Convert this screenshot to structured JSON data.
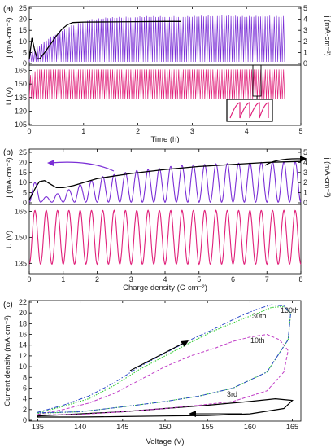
{
  "colors": {
    "purple": "#7b2fd6",
    "pink": "#e0207a",
    "black": "#000000",
    "green": "#33cc33",
    "magenta": "#c03cc6",
    "blue": "#2a48c8"
  },
  "chart_data": [
    {
      "panel": "(a)",
      "type": "line",
      "xlabel": "Time (h)",
      "xlim": [
        0,
        5
      ],
      "xticks": [
        "0",
        "1",
        "2",
        "3",
        "4",
        "5"
      ],
      "top": {
        "ylabel_left": "j (mA·cm⁻²)",
        "ylabel_right": "j (mA·cm⁻²)",
        "ylim_left": [
          0,
          25
        ],
        "yticks_left": [
          "0",
          "5",
          "10",
          "15",
          "20",
          "25"
        ],
        "ylim_right": [
          0,
          5
        ],
        "yticks_right": [
          "0",
          "1",
          "2",
          "3",
          "4",
          "5"
        ],
        "purple_series": {
          "x_range": [
            0,
            4.7
          ],
          "cycles": 112,
          "peak_values_right_axis": [
            1.0,
            2.3,
            3.3,
            3.9,
            4.1,
            4.15,
            4.2,
            4.2,
            4.2,
            4.25,
            4.3,
            4.2,
            4.25,
            4.2
          ]
        },
        "black_envelope": {
          "x": [
            0,
            0.05,
            0.1,
            0.15,
            0.2,
            0.3,
            0.4,
            0.5,
            0.6,
            0.7,
            0.8,
            1.0,
            1.5,
            2.0,
            2.5,
            2.8
          ],
          "y": [
            2,
            11.5,
            6,
            2,
            2.3,
            5.5,
            9,
            12.5,
            15.5,
            17.5,
            18.5,
            18.7,
            18.8,
            18.9,
            19,
            19
          ]
        }
      },
      "bottom": {
        "ylabel": "U (V)",
        "ylim": [
          105,
          170
        ],
        "yticks": [
          "105",
          "120",
          "135",
          "150",
          "165"
        ],
        "pink_series": {
          "x_range": [
            0,
            4.7
          ],
          "low": 133,
          "high": 166
        },
        "inset_x_range": [
          4.05,
          4.15
        ]
      }
    },
    {
      "panel": "(b)",
      "type": "line",
      "xlabel": "Charge density (C·cm⁻²)",
      "xlim": [
        0,
        8
      ],
      "xticks": [
        "0",
        "1",
        "2",
        "3",
        "4",
        "5",
        "6",
        "7",
        "8"
      ],
      "top": {
        "ylabel_left": "j (mA·cm⁻²)",
        "ylabel_right": "j (mA·cm⁻²)",
        "ylim_left": [
          0,
          25
        ],
        "yticks_left": [
          "0",
          "5",
          "10",
          "15",
          "20",
          "25"
        ],
        "ylim_right": [
          0,
          5
        ],
        "yticks_right": [
          "0",
          "1",
          "2",
          "3",
          "4",
          "5"
        ],
        "purple_peaks": [
          10,
          3,
          4.5,
          6.5,
          9,
          11,
          13,
          14,
          15,
          16,
          16.5,
          17,
          18,
          18.5,
          18.8,
          19,
          19.3,
          19.5,
          19.6,
          19.8,
          20,
          20.1,
          20.2,
          20.3
        ],
        "black_envelope": {
          "x": [
            0,
            0.2,
            0.3,
            0.45,
            0.6,
            0.8,
            1.0,
            1.3,
            2.0,
            3.0,
            4.0,
            5.0,
            6.0,
            7.0,
            8.0
          ],
          "y": [
            0.3,
            1.6,
            2.1,
            2.2,
            1.9,
            1.5,
            1.5,
            1.7,
            2.4,
            2.9,
            3.3,
            3.6,
            3.8,
            4.0,
            4.1
          ]
        }
      },
      "bottom": {
        "ylabel": "U (V)",
        "ylim": [
          130,
          168
        ],
        "yticks": [
          "135",
          "150",
          "165"
        ],
        "pink_series": {
          "cycles": 24,
          "low": 134.5,
          "high": 165.5
        }
      }
    },
    {
      "panel": "(c)",
      "type": "line",
      "xlabel": "Voltage (V)",
      "ylabel": "Current density (mA·cm⁻²)",
      "xlim": [
        134,
        166
      ],
      "xticks": [
        "135",
        "140",
        "145",
        "150",
        "155",
        "160",
        "165"
      ],
      "ylim": [
        0,
        22
      ],
      "yticks": [
        "0",
        "2",
        "4",
        "6",
        "8",
        "10",
        "12",
        "14",
        "16",
        "18",
        "20",
        "22"
      ],
      "series": [
        {
          "name": "3rd",
          "color": "black",
          "up": [
            [
              135,
              0.8
            ],
            [
              140,
              1.2
            ],
            [
              145,
              1.6
            ],
            [
              150,
              2.2
            ],
            [
              155,
              2.8
            ],
            [
              160,
              3.5
            ],
            [
              163,
              4
            ],
            [
              165,
              3.7
            ]
          ],
          "down": [
            [
              165,
              3.7
            ],
            [
              164,
              2.2
            ],
            [
              160,
              1.2
            ],
            [
              155,
              0.9
            ],
            [
              150,
              0.8
            ],
            [
              145,
              0.7
            ],
            [
              140,
              0.6
            ],
            [
              135,
              0.6
            ]
          ]
        },
        {
          "name": "10th",
          "color": "magenta",
          "up": [
            [
              135,
              1.1
            ],
            [
              138,
              2
            ],
            [
              141,
              3.2
            ],
            [
              144,
              5
            ],
            [
              147,
              7.5
            ],
            [
              150,
              10
            ],
            [
              153,
              12
            ],
            [
              156,
              13.5
            ],
            [
              158,
              14.7
            ],
            [
              160,
              15.5
            ],
            [
              162,
              16
            ],
            [
              163.5,
              15
            ],
            [
              164.5,
              13
            ]
          ],
          "down": [
            [
              164.5,
              13
            ],
            [
              164,
              9
            ],
            [
              162,
              5.5
            ],
            [
              158,
              3.5
            ],
            [
              154,
              2.8
            ],
            [
              150,
              2.2
            ],
            [
              145,
              1.6
            ],
            [
              140,
              1.1
            ],
            [
              135,
              1.0
            ]
          ]
        },
        {
          "name": "30th",
          "color": "green",
          "up": [
            [
              135,
              1.4
            ],
            [
              138,
              2.6
            ],
            [
              141,
              4
            ],
            [
              144,
              6.5
            ],
            [
              147,
              9.5
            ],
            [
              150,
              12
            ],
            [
              153,
              14.5
            ],
            [
              155.5,
              16.5
            ],
            [
              157,
              17.5
            ],
            [
              159,
              18.8
            ],
            [
              161,
              20
            ],
            [
              162.5,
              21
            ],
            [
              164,
              21.2
            ],
            [
              164.8,
              20
            ]
          ],
          "down": [
            [
              164.8,
              20
            ],
            [
              164.5,
              15
            ],
            [
              162,
              9
            ],
            [
              158,
              6
            ],
            [
              154,
              4.5
            ],
            [
              150,
              3.5
            ],
            [
              145,
              2.5
            ],
            [
              140,
              1.6
            ],
            [
              135,
              1.3
            ]
          ]
        },
        {
          "name": "130th",
          "color": "blue",
          "up": [
            [
              135,
              1.5
            ],
            [
              138,
              2.8
            ],
            [
              141,
              4.5
            ],
            [
              144,
              7
            ],
            [
              147,
              10
            ],
            [
              150,
              12.5
            ],
            [
              153,
              15
            ],
            [
              155.5,
              16.8
            ],
            [
              157,
              18
            ],
            [
              159,
              19.5
            ],
            [
              161,
              20.8
            ],
            [
              162.5,
              21.5
            ],
            [
              164,
              21.3
            ],
            [
              164.8,
              20
            ]
          ],
          "down": [
            [
              164.8,
              20
            ],
            [
              164.5,
              15
            ],
            [
              162,
              9
            ],
            [
              158,
              6
            ],
            [
              154,
              4.5
            ],
            [
              150,
              3.5
            ],
            [
              145,
              2.5
            ],
            [
              140,
              1.6
            ],
            [
              135,
              1.4
            ]
          ]
        }
      ]
    }
  ]
}
